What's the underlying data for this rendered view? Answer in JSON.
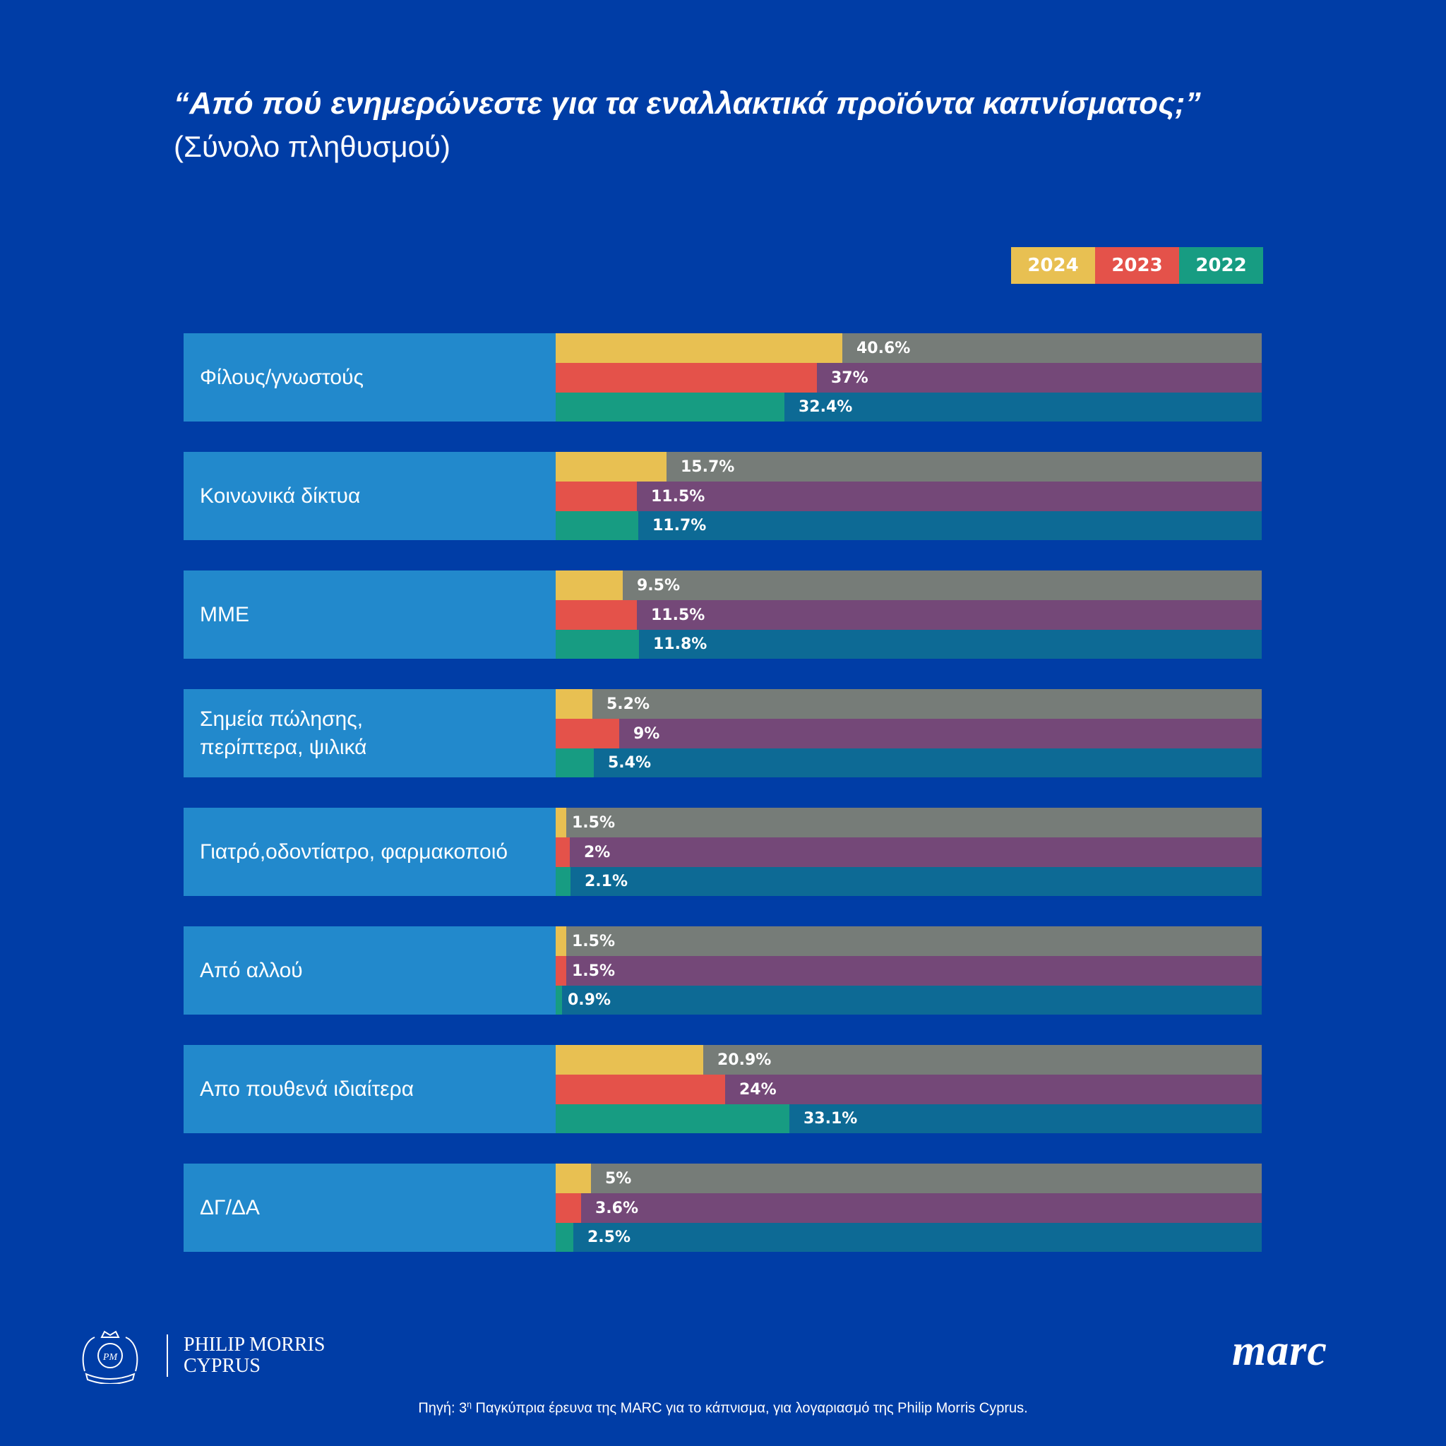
{
  "header": {
    "title": "“Από πού ενημερώνεστε για τα εναλλακτικά προϊόντα καπνίσματος;”",
    "subtitle": "(Σύνολο πληθυσμού)"
  },
  "colors": {
    "background": "#003da6",
    "label_box": "#2289cc",
    "series_fill": [
      "#e8c052",
      "#e4524a",
      "#179c82"
    ],
    "series_track": [
      "#767c78",
      "#744878",
      "#0d6a95"
    ]
  },
  "chart_data": {
    "type": "bar",
    "orientation": "horizontal",
    "title": "“Από πού ενημερώνεστε για τα εναλλακτικά προϊόντα καπνίσματος;”",
    "subtitle": "(Σύνολο πληθυσμού)",
    "xlim": [
      0,
      100
    ],
    "unit": "%",
    "legend_position": "top-right",
    "categories": [
      "Φίλους/γνωστούς",
      "Κοινωνικά δίκτυα",
      "ΜΜΕ",
      "Σημεία πώλησης,\nπερίπτερα, ψιλικά",
      "Γιατρό,οδοντίατρο, φαρμακοποιό",
      "Από αλλού",
      "Απο πουθενά ιδιαίτερα",
      "ΔΓ/ΔΑ"
    ],
    "series": [
      {
        "name": "2024",
        "values": [
          40.6,
          15.7,
          9.5,
          5.2,
          1.5,
          1.5,
          20.9,
          5
        ],
        "labels": [
          "40.6%",
          "15.7%",
          "9.5%",
          "5.2%",
          "1.5%",
          "1.5%",
          "20.9%",
          "5%"
        ]
      },
      {
        "name": "2023",
        "values": [
          37,
          11.5,
          11.5,
          9,
          2,
          1.5,
          24,
          3.6
        ],
        "labels": [
          "37%",
          "11.5%",
          "11.5%",
          "9%",
          "2%",
          "1.5%",
          "24%",
          "3.6%"
        ]
      },
      {
        "name": "2022",
        "values": [
          32.4,
          11.7,
          11.8,
          5.4,
          2.1,
          0.9,
          33.1,
          2.5
        ],
        "labels": [
          "32.4%",
          "11.7%",
          "11.8%",
          "5.4%",
          "2.1%",
          "0.9%",
          "33.1%",
          "2.5%"
        ]
      }
    ]
  },
  "footer": {
    "brand_line1": "PHILIP MORRIS",
    "brand_line2": "CYPRUS",
    "crest_text": "PHILIP MORRIS INTERNATIONAL",
    "partner_logo": "marc",
    "source_prefix": "Πηγή: 3",
    "source_sup": "η",
    "source_rest": " Παγκύπρια έρευνα της MARC για το κάπνισμα, για λογαριασμό της Philip Morris Cyprus."
  }
}
